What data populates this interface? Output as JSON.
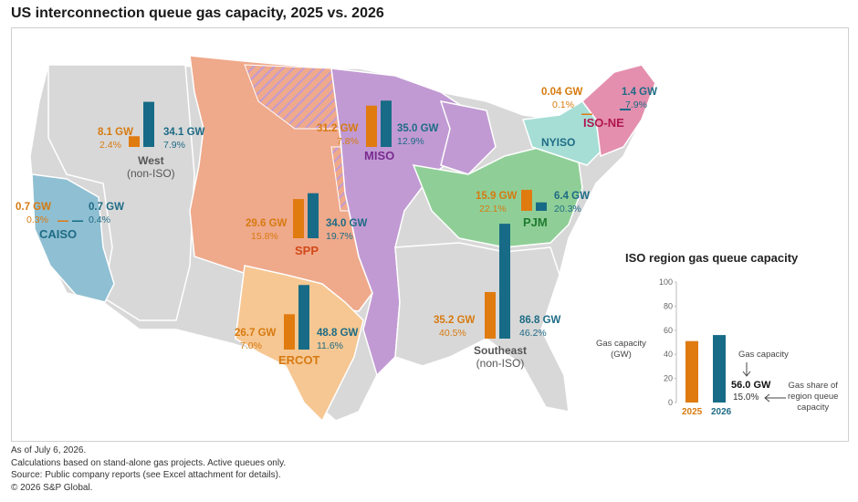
{
  "title": "US interconnection queue gas capacity, 2025 vs. 2026",
  "colors": {
    "y2025": "#e07b10",
    "y2026": "#176b86",
    "west": "#d8d8d8",
    "caiso": "#8fbfd2",
    "spp": "#efa98b",
    "ercot": "#f6c792",
    "miso": "#c19ad3",
    "pjm": "#8fcf97",
    "nyiso": "#a6ded6",
    "isone": "#e48fae",
    "southeast": "#d8d8d8"
  },
  "regions": [
    {
      "id": "west",
      "name": "West (non-ISO)",
      "name_line1": "West",
      "name_line2": "(non-ISO)",
      "gw_2025": "8.1 GW",
      "pct_2025": "2.4%",
      "gw_2026": "34.1 GW",
      "pct_2026": "7.9%",
      "v2025": 8.1,
      "v2026": 34.1
    },
    {
      "id": "caiso",
      "name": "CAISO",
      "gw_2025": "0.7 GW",
      "pct_2025": "0.3%",
      "gw_2026": "0.7 GW",
      "pct_2026": "0.4%",
      "v2025": 0.7,
      "v2026": 0.7
    },
    {
      "id": "spp",
      "name": "SPP",
      "gw_2025": "29.6 GW",
      "pct_2025": "15.8%",
      "gw_2026": "34.0 GW",
      "pct_2026": "19.7%",
      "v2025": 29.6,
      "v2026": 34.0
    },
    {
      "id": "ercot",
      "name": "ERCOT",
      "gw_2025": "26.7 GW",
      "pct_2025": "7.0%",
      "gw_2026": "48.8 GW",
      "pct_2026": "11.6%",
      "v2025": 26.7,
      "v2026": 48.8
    },
    {
      "id": "miso",
      "name": "MISO",
      "gw_2025": "31.2 GW",
      "pct_2025": "7.8%",
      "gw_2026": "35.0 GW",
      "pct_2026": "12.9%",
      "v2025": 31.2,
      "v2026": 35.0
    },
    {
      "id": "pjm",
      "name": "PJM",
      "gw_2025": "15.9 GW",
      "pct_2025": "22.1%",
      "gw_2026": "6.4 GW",
      "pct_2026": "20.3%",
      "v2025": 15.9,
      "v2026": 6.4
    },
    {
      "id": "nyiso",
      "name": "NYISO",
      "gw_2025": "0.04 GW",
      "pct_2025": "0.1%",
      "v2025": 0.04
    },
    {
      "id": "isone",
      "name": "ISO-NE",
      "gw_2026": "1.4 GW",
      "pct_2026": "7.9%",
      "v2026": 1.4
    },
    {
      "id": "southeast",
      "name": "Southeast (non-ISO)",
      "name_line1": "Southeast",
      "name_line2": "(non-ISO)",
      "gw_2025": "35.2 GW",
      "pct_2025": "40.5%",
      "gw_2026": "86.8 GW",
      "pct_2026": "46.2%",
      "v2025": 35.2,
      "v2026": 86.8
    }
  ],
  "legend": {
    "title": "ISO region gas queue capacity",
    "axis_title_line1": "Gas capacity",
    "axis_title_line2": "(GW)",
    "ticks": [
      "100",
      "80",
      "60",
      "40",
      "20",
      "0"
    ],
    "example_2025": 51,
    "example_2026": 56,
    "year_2025": "2025",
    "year_2026": "2026",
    "annot_capacity": "Gas capacity",
    "example_gw": "56.0 GW",
    "example_pct": "15.0%",
    "annot_share_line1": "Gas share of",
    "annot_share_line2": "region queue",
    "annot_share_line3": "capacity"
  },
  "footer": [
    "As of July 6, 2026.",
    "Calculations based on stand-alone gas projects. Active queues only.",
    "Source: Public company reports (see Excel attachment for details).",
    "© 2026 S&P Global."
  ]
}
